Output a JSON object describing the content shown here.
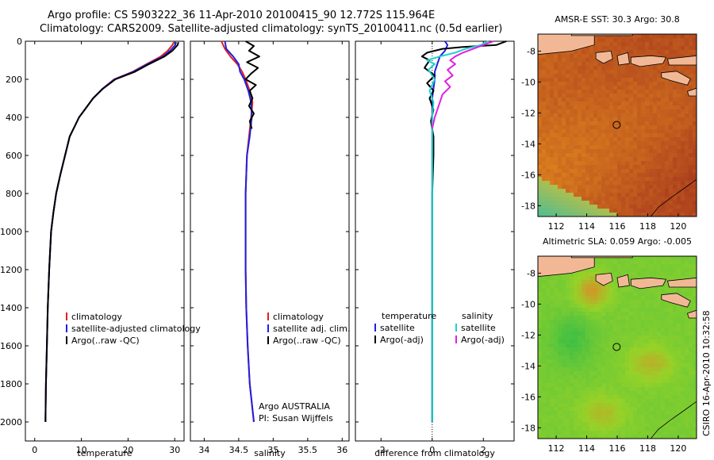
{
  "header": {
    "line1": "Argo profile: CS 5903222_36 11-Apr-2010 20100415_90 12.772S 115.964E",
    "line2": "Climatology: CARS2009. Satellite-adjusted climatology: synTS_20100411.nc (0.5d earlier)"
  },
  "credit": {
    "stamp": "CSIRO 16-Apr-2010 10:32:58",
    "program": "Argo AUSTRALIA",
    "pi": "PI: Susan Wijffels"
  },
  "colors": {
    "climatology": "#e02020",
    "satellite": "#2020e0",
    "argo": "#000000",
    "sat_diff": "#20d0d0",
    "argo_adj": "#e020e0",
    "land": "#f2b896",
    "map_border": "#000000"
  },
  "chart_data": [
    {
      "type": "line",
      "id": "temperature",
      "xlabel": "temperature",
      "ylabel": "",
      "xlim": [
        -2,
        32
      ],
      "ylim": [
        0,
        2100
      ],
      "y_inverted": true,
      "xticks": [
        0,
        10,
        20,
        30
      ],
      "yticks": [
        0,
        200,
        400,
        600,
        800,
        1000,
        1200,
        1400,
        1600,
        1800,
        2000
      ],
      "legend": [
        "climatology",
        "satellite-adjusted climatology",
        "Argo(..raw -QC)"
      ],
      "series": [
        {
          "name": "climatology",
          "color": "#e02020",
          "x": [
            29.8,
            29.5,
            28.5,
            27,
            24,
            21,
            17,
            14.5,
            12.5,
            11,
            9.5,
            8.5,
            7.5,
            6.5,
            5.5,
            4.6,
            4,
            3.5,
            3.1,
            2.8,
            2.6,
            2.4,
            2.3
          ],
          "y": [
            5,
            20,
            50,
            80,
            120,
            160,
            200,
            250,
            300,
            350,
            400,
            450,
            500,
            600,
            700,
            800,
            900,
            1000,
            1200,
            1400,
            1600,
            1800,
            2000
          ]
        },
        {
          "name": "satellite-adjusted climatology",
          "color": "#2020e0",
          "x": [
            30.3,
            30.1,
            29,
            27.5,
            24.2,
            21.2,
            17.1,
            14.5,
            12.5,
            11,
            9.5,
            8.5,
            7.5,
            6.5,
            5.5,
            4.6,
            4,
            3.5,
            3.1,
            2.8,
            2.6,
            2.4,
            2.3
          ],
          "y": [
            5,
            20,
            50,
            80,
            120,
            160,
            200,
            250,
            300,
            350,
            400,
            450,
            500,
            600,
            700,
            800,
            900,
            1000,
            1200,
            1400,
            1600,
            1800,
            2000
          ]
        },
        {
          "name": "Argo(..raw -QC)",
          "color": "#000000",
          "x": [
            30.8,
            30.6,
            29.5,
            27.8,
            24.5,
            21.5,
            17.3,
            14.6,
            12.5,
            11,
            9.5,
            8.5,
            7.5,
            6.5,
            5.5,
            4.6,
            4,
            3.5,
            3.1,
            2.8,
            2.6,
            2.4,
            2.3
          ],
          "y": [
            5,
            20,
            50,
            80,
            120,
            160,
            200,
            250,
            300,
            350,
            400,
            450,
            500,
            600,
            700,
            800,
            900,
            1000,
            1200,
            1400,
            1600,
            1800,
            2000
          ]
        }
      ]
    },
    {
      "type": "line",
      "id": "salinity",
      "xlabel": "salinity",
      "xlim": [
        33.8,
        36.1
      ],
      "ylim": [
        0,
        2100
      ],
      "y_inverted": true,
      "xticks": [
        34,
        34.5,
        35,
        35.5,
        36
      ],
      "legend": [
        "climatology",
        "satellite adj. clim.",
        "Argo(..raw -QC)"
      ],
      "series": [
        {
          "name": "climatology",
          "color": "#e02020",
          "x": [
            34.25,
            34.3,
            34.38,
            34.48,
            34.55,
            34.6,
            34.66,
            34.7,
            34.68,
            34.65,
            34.62,
            34.6,
            34.6,
            34.6,
            34.61,
            34.63,
            34.66,
            34.69,
            34.72
          ],
          "y": [
            0,
            40,
            80,
            120,
            160,
            200,
            260,
            320,
            400,
            500,
            600,
            800,
            1000,
            1200,
            1400,
            1600,
            1800,
            1900,
            2000
          ]
        },
        {
          "name": "satellite adj. clim.",
          "color": "#2020e0",
          "x": [
            34.3,
            34.32,
            34.42,
            34.5,
            34.52,
            34.58,
            34.64,
            34.68,
            34.69,
            34.66,
            34.62,
            34.6,
            34.6,
            34.6,
            34.61,
            34.63,
            34.66,
            34.69,
            34.72
          ],
          "y": [
            0,
            40,
            80,
            120,
            160,
            200,
            260,
            320,
            400,
            500,
            600,
            800,
            1000,
            1200,
            1400,
            1600,
            1800,
            1900,
            2000
          ]
        },
        {
          "name": "Argo(..raw -QC)",
          "color": "#000000",
          "x": [
            34.6,
            34.72,
            34.65,
            34.8,
            34.62,
            34.78,
            34.68,
            34.6,
            34.75,
            34.66,
            34.7,
            34.65,
            34.72,
            34.66,
            34.69
          ],
          "y": [
            0,
            25,
            50,
            80,
            110,
            140,
            170,
            200,
            230,
            260,
            300,
            340,
            380,
            420,
            460
          ]
        }
      ]
    },
    {
      "type": "line",
      "id": "difference",
      "xlabel": "difference from climatology",
      "xlim": [
        -3,
        3.2
      ],
      "ylim": [
        0,
        2100
      ],
      "y_inverted": true,
      "xticks": [
        -2,
        0,
        2
      ],
      "legend": [
        "temperature",
        "satellite",
        "Argo(-adj)",
        "salinity",
        "satellite",
        "Argo(-adj)"
      ],
      "series": [
        {
          "name": "temperature satellite",
          "color": "#2020e0",
          "x": [
            0.5,
            0.6,
            0.5,
            0.3,
            0.2,
            0.1,
            0.1,
            0.05,
            0,
            0,
            0,
            0,
            0,
            0
          ],
          "y": [
            0,
            20,
            50,
            80,
            120,
            160,
            200,
            250,
            300,
            400,
            600,
            1000,
            1600,
            2000
          ]
        },
        {
          "name": "temperature Argo(-adj)",
          "color": "#000000",
          "x": [
            2.9,
            2.5,
            1.2,
            0.4,
            -0.2,
            -0.4,
            -0.1,
            -0.3,
            0.1,
            -0.2,
            0.05,
            -0.1,
            0.05,
            -0.05,
            0.05,
            0.05,
            0,
            0,
            0,
            0
          ],
          "y": [
            0,
            20,
            30,
            40,
            60,
            80,
            100,
            140,
            180,
            220,
            260,
            300,
            360,
            420,
            500,
            600,
            800,
            1000,
            1600,
            2000
          ]
        },
        {
          "name": "salinity satellite",
          "color": "#20d0d0",
          "x": [
            2.2,
            1.9,
            1.3,
            0.9,
            0.3,
            -0.2,
            0.1,
            -0.15,
            0.1,
            -0.1,
            0.05,
            0,
            0,
            0,
            0
          ],
          "y": [
            0,
            20,
            40,
            60,
            80,
            100,
            120,
            150,
            200,
            260,
            320,
            400,
            800,
            1400,
            2000
          ]
        },
        {
          "name": "salinity Argo(-adj)",
          "color": "#e020e0",
          "x": [
            2.4,
            2,
            1.6,
            1.2,
            0.9,
            0.7,
            0.9,
            0.6,
            0.8,
            0.5,
            0.7,
            0.4,
            0.3,
            0.2,
            0.1,
            0
          ],
          "y": [
            0,
            20,
            40,
            60,
            80,
            100,
            120,
            150,
            180,
            210,
            240,
            280,
            320,
            360,
            400,
            460
          ]
        }
      ]
    },
    {
      "type": "heatmap",
      "id": "sst-map",
      "title": "AMSR-E SST: 30.3 Argo: 30.8",
      "xlim": [
        110.8,
        121.2
      ],
      "ylim": [
        -18.7,
        -6.9
      ],
      "xticks": [
        112,
        114,
        116,
        118,
        120
      ],
      "yticks": [
        -8,
        -10,
        -12,
        -14,
        -16,
        -18
      ],
      "marker": {
        "lon": 115.964,
        "lat": -12.772
      }
    },
    {
      "type": "heatmap",
      "id": "sla-map",
      "title": "Altimetric SLA: 0.059 Argo: -0.005",
      "xlim": [
        110.8,
        121.2
      ],
      "ylim": [
        -18.7,
        -6.9
      ],
      "xticks": [
        112,
        114,
        116,
        118,
        120
      ],
      "yticks": [
        -8,
        -10,
        -12,
        -14,
        -16,
        -18
      ],
      "marker": {
        "lon": 115.964,
        "lat": -12.772
      }
    }
  ]
}
